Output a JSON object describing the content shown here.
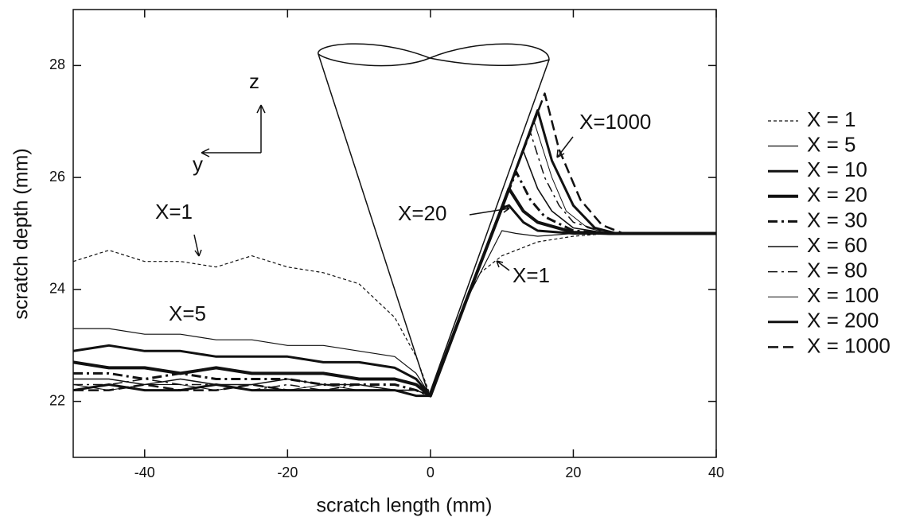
{
  "chart_data": {
    "type": "line",
    "xlabel": "scratch length (mm)",
    "ylabel": "scratch depth (mm)",
    "xlim": [
      -50,
      40
    ],
    "ylim": [
      21,
      29
    ],
    "xticks": [
      -40,
      -20,
      0,
      20,
      40
    ],
    "yticks": [
      22,
      24,
      26,
      28
    ],
    "annotations": [
      "X=1000",
      "X=20",
      "X=1",
      "X=1",
      "X=5",
      "z",
      "y"
    ],
    "series": [
      {
        "name": "X = 1",
        "color": "#111",
        "line_style": "dotted",
        "linewidth": 1.2,
        "x": [
          -50,
          -45,
          -40,
          -35,
          -30,
          -25,
          -20,
          -15,
          -10,
          -5,
          -2,
          0,
          5,
          7,
          10,
          15,
          20,
          25,
          30,
          40
        ],
        "values": [
          24.5,
          24.7,
          24.5,
          24.5,
          24.4,
          24.6,
          24.4,
          24.3,
          24.1,
          23.5,
          22.8,
          22.1,
          23.8,
          24.3,
          24.6,
          24.85,
          24.95,
          25,
          25,
          25
        ]
      },
      {
        "name": "X = 5",
        "color": "#111",
        "line_style": "solid",
        "linewidth": 1.2,
        "x": [
          -50,
          -45,
          -40,
          -35,
          -30,
          -25,
          -20,
          -15,
          -10,
          -5,
          -2,
          0,
          5,
          10,
          12,
          15,
          20,
          25,
          30,
          40
        ],
        "values": [
          23.3,
          23.3,
          23.2,
          23.2,
          23.1,
          23.1,
          23,
          23,
          22.9,
          22.8,
          22.5,
          22.1,
          23.8,
          25.05,
          25,
          24.95,
          25,
          25,
          25,
          25
        ]
      },
      {
        "name": "X = 10",
        "color": "#111",
        "line_style": "solid",
        "linewidth": 3,
        "x": [
          -50,
          -45,
          -40,
          -35,
          -30,
          -25,
          -20,
          -15,
          -10,
          -5,
          -2,
          0,
          5,
          10,
          11,
          13,
          15,
          20,
          25,
          30,
          40
        ],
        "values": [
          22.9,
          23,
          22.9,
          22.9,
          22.8,
          22.8,
          22.8,
          22.7,
          22.7,
          22.6,
          22.4,
          22.1,
          23.8,
          25.45,
          25.5,
          25.2,
          25.05,
          25,
          25,
          25,
          25
        ]
      },
      {
        "name": "X = 20",
        "color": "#111",
        "line_style": "solid",
        "linewidth": 4,
        "x": [
          -50,
          -45,
          -40,
          -35,
          -30,
          -25,
          -20,
          -15,
          -10,
          -5,
          -2,
          0,
          5,
          10,
          11,
          13,
          15,
          20,
          25,
          30,
          40
        ],
        "values": [
          22.7,
          22.6,
          22.6,
          22.5,
          22.6,
          22.5,
          22.5,
          22.5,
          22.4,
          22.4,
          22.3,
          22.1,
          23.8,
          25.46,
          25.8,
          25.4,
          25.2,
          25.02,
          25,
          25,
          25
        ]
      },
      {
        "name": "X = 30",
        "color": "#111",
        "line_style": "dashdot",
        "linewidth": 3,
        "x": [
          -50,
          -45,
          -40,
          -35,
          -30,
          -25,
          -20,
          -15,
          -10,
          -5,
          -2,
          0,
          5,
          10,
          12,
          14,
          16,
          20,
          25,
          30,
          40
        ],
        "values": [
          22.5,
          22.5,
          22.4,
          22.5,
          22.4,
          22.4,
          22.4,
          22.3,
          22.3,
          22.3,
          22.2,
          22.1,
          23.8,
          25.46,
          26.1,
          25.6,
          25.3,
          25.05,
          25,
          25,
          25
        ]
      },
      {
        "name": "X = 60",
        "color": "#111",
        "line_style": "solid",
        "linewidth": 1.6,
        "x": [
          -50,
          -45,
          -40,
          -35,
          -30,
          -25,
          -20,
          -15,
          -10,
          -5,
          -2,
          0,
          5,
          10,
          13,
          15,
          17,
          20,
          25,
          30,
          40
        ],
        "values": [
          22.4,
          22.4,
          22.3,
          22.4,
          22.3,
          22.3,
          22.4,
          22.3,
          22.3,
          22.2,
          22.2,
          22.1,
          23.8,
          25.46,
          26.47,
          25.8,
          25.4,
          25.1,
          25,
          25,
          25
        ]
      },
      {
        "name": "X = 80",
        "color": "#111",
        "line_style": "dashdot",
        "linewidth": 1.5,
        "x": [
          -50,
          -45,
          -40,
          -35,
          -30,
          -25,
          -20,
          -15,
          -10,
          -5,
          -2,
          0,
          5,
          10,
          14,
          16,
          18,
          20,
          25,
          30,
          40
        ],
        "values": [
          22.3,
          22.3,
          22.4,
          22.3,
          22.3,
          22.2,
          22.3,
          22.2,
          22.3,
          22.2,
          22.2,
          22.1,
          23.8,
          25.46,
          26.8,
          26,
          25.5,
          25.2,
          25,
          25,
          25
        ]
      },
      {
        "name": "X = 100",
        "color": "#111",
        "line_style": "solid",
        "linewidth": 1,
        "x": [
          -50,
          -45,
          -40,
          -35,
          -30,
          -25,
          -20,
          -15,
          -10,
          -5,
          -2,
          0,
          5,
          10,
          14.5,
          17,
          19,
          22,
          25,
          30,
          40
        ],
        "values": [
          22.3,
          22.2,
          22.3,
          22.3,
          22.2,
          22.3,
          22.2,
          22.3,
          22.2,
          22.2,
          22.2,
          22.1,
          23.8,
          25.46,
          27,
          26,
          25.4,
          25.1,
          25,
          25,
          25
        ]
      },
      {
        "name": "X = 200",
        "color": "#111",
        "line_style": "solid",
        "linewidth": 3,
        "x": [
          -50,
          -45,
          -40,
          -35,
          -30,
          -25,
          -20,
          -15,
          -10,
          -5,
          -2,
          0,
          5,
          10,
          15,
          17,
          20,
          23,
          26,
          30,
          40
        ],
        "values": [
          22.2,
          22.3,
          22.2,
          22.2,
          22.3,
          22.2,
          22.2,
          22.2,
          22.2,
          22.2,
          22.1,
          22.1,
          23.8,
          25.46,
          27.2,
          26.3,
          25.5,
          25.1,
          25,
          25,
          25
        ]
      },
      {
        "name": "X = 1000",
        "color": "#111",
        "line_style": "dashed",
        "linewidth": 2.5,
        "x": [
          -50,
          -45,
          -40,
          -35,
          -30,
          -25,
          -20,
          -15,
          -10,
          -5,
          -2,
          0,
          5,
          10,
          16,
          18,
          21,
          24,
          27,
          30,
          40
        ],
        "values": [
          22.2,
          22.2,
          22.3,
          22.2,
          22.2,
          22.3,
          22.2,
          22.2,
          22.2,
          22.2,
          22.1,
          22.1,
          23.8,
          25.46,
          27.5,
          26.5,
          25.6,
          25.15,
          25,
          25,
          25
        ]
      }
    ]
  }
}
